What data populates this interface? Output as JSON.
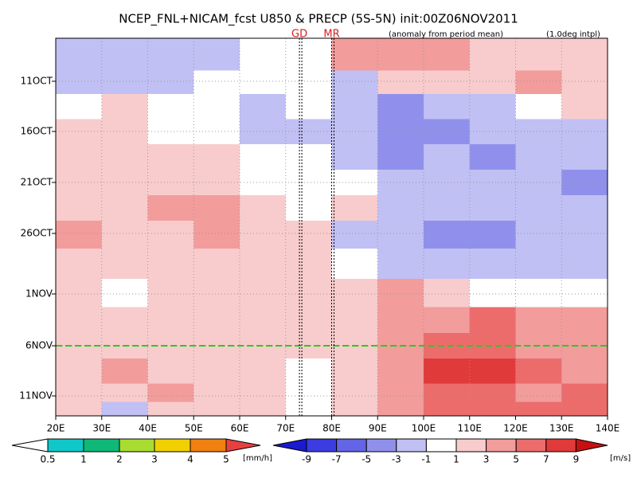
{
  "chart_data": {
    "type": "heatmap",
    "title": "NCEP_FNL+NICAM_fcst U850 & PRECP (5S-5N) init:00Z06NOV2011",
    "subtitle": "(anomaly from period mean)",
    "note": "(1.0deg intpl)",
    "x": [
      25,
      35,
      45,
      55,
      65,
      75,
      85,
      95,
      105,
      115,
      125,
      135
    ],
    "xlim": [
      20,
      140
    ],
    "xticks": [
      {
        "value": 20,
        "label": "20E"
      },
      {
        "value": 30,
        "label": "30E"
      },
      {
        "value": 40,
        "label": "40E"
      },
      {
        "value": 50,
        "label": "50E"
      },
      {
        "value": 60,
        "label": "60E"
      },
      {
        "value": 70,
        "label": "70E"
      },
      {
        "value": 80,
        "label": "80E"
      },
      {
        "value": 90,
        "label": "90E"
      },
      {
        "value": 100,
        "label": "100E"
      },
      {
        "value": 110,
        "label": "110E"
      },
      {
        "value": 120,
        "label": "120E"
      },
      {
        "value": 130,
        "label": "130E"
      },
      {
        "value": 140,
        "label": "140E"
      }
    ],
    "y": [
      null,
      "11OCT",
      null,
      "16OCT",
      null,
      "21OCT",
      null,
      "26OCT",
      null,
      "1NOV",
      null,
      "6NOV",
      null,
      "11NOV",
      null
    ],
    "values": [
      [
        -3,
        -3,
        -2,
        -2,
        -1,
        0,
        3,
        4,
        3,
        2,
        2,
        1
      ],
      [
        -2,
        -2,
        -2,
        -1,
        -1,
        0,
        -2,
        1,
        2,
        2,
        3,
        2
      ],
      [
        0,
        1,
        -1,
        -1,
        -2,
        -1,
        -3,
        -4,
        -3,
        -2,
        -1,
        1
      ],
      [
        1,
        1,
        0,
        -1,
        -2,
        -2,
        -3,
        -5,
        -4,
        -3,
        -2,
        -2
      ],
      [
        2,
        2,
        1,
        1,
        -1,
        -1,
        -2,
        -4,
        -3,
        -4,
        -3,
        -3
      ],
      [
        1,
        2,
        2,
        2,
        0,
        0,
        -1,
        -2,
        -3,
        -3,
        -3,
        -4
      ],
      [
        2,
        2,
        3,
        4,
        2,
        0,
        1,
        -2,
        -3,
        -3,
        -3,
        -3
      ],
      [
        3,
        2,
        2,
        3,
        2,
        1,
        -2,
        -3,
        -4,
        -4,
        -3,
        -2
      ],
      [
        2,
        1,
        1,
        1,
        1,
        1,
        -1,
        -3,
        -3,
        -3,
        -2,
        -2
      ],
      [
        1,
        0,
        2,
        1,
        1,
        1,
        2,
        3,
        1,
        0,
        -1,
        -1
      ],
      [
        2,
        2,
        2,
        1,
        2,
        2,
        2,
        4,
        4,
        5,
        3,
        3
      ],
      [
        2,
        2,
        2,
        2,
        2,
        2,
        1,
        3,
        6,
        6,
        4,
        3
      ],
      [
        1,
        3,
        1,
        1,
        1,
        0,
        1,
        4,
        7,
        7,
        5,
        4
      ],
      [
        2,
        2,
        3,
        2,
        1,
        0,
        1,
        3,
        6,
        5,
        4,
        6
      ],
      [
        1,
        -2,
        2,
        1,
        1,
        0,
        1,
        3,
        5,
        6,
        5,
        6
      ]
    ],
    "levels": [
      -9,
      -7,
      -5,
      -3,
      -1,
      1,
      3,
      5,
      7,
      9
    ],
    "colors": [
      "#1a1ad0",
      "#3c3ce0",
      "#6464e6",
      "#9090ec",
      "#c0c0f4",
      "#ffffff",
      "#f8cccc",
      "#f29c9c",
      "#ec6c6c",
      "#e03a3a",
      "#c81010"
    ],
    "units": "[m/s]",
    "precip_levels": [
      0.5,
      1,
      2,
      3,
      4,
      5
    ],
    "precip_colors": [
      "#ffffff",
      "#10c8c8",
      "#10b878",
      "#a8dc30",
      "#f0d000",
      "#f08010",
      "#e84040"
    ],
    "precip_units": "[mm/h]",
    "annotations": [
      {
        "label": "GD",
        "x": 73
      },
      {
        "label": "MR",
        "x": 80
      }
    ],
    "grid": true
  }
}
